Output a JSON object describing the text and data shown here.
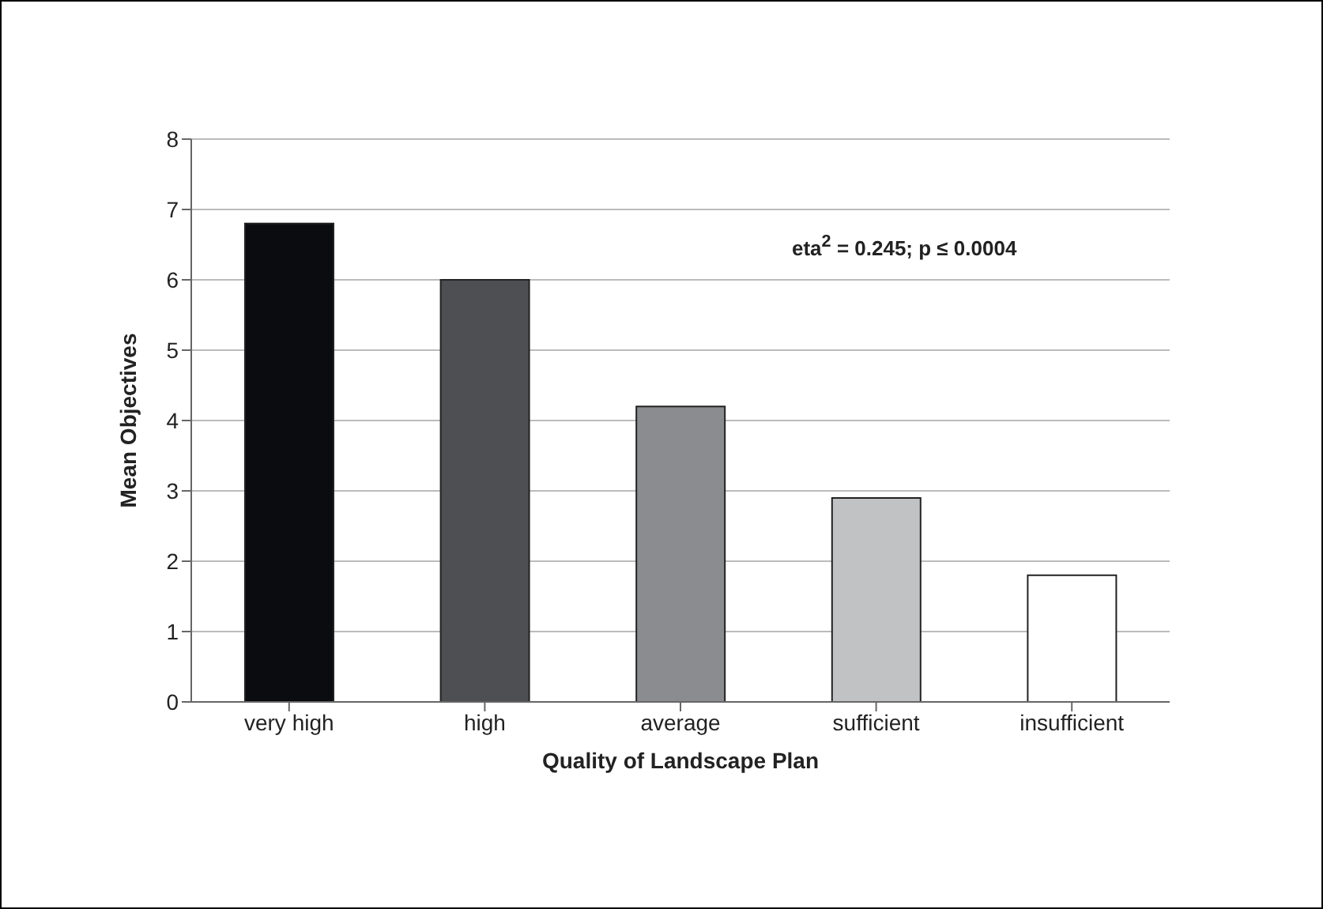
{
  "chart_data": {
    "type": "bar",
    "xlabel": "Quality of Landscape Plan",
    "ylabel": "Mean Objectives",
    "categories": [
      "very high",
      "high",
      "average",
      "sufficient",
      "insufficient"
    ],
    "values": [
      6.8,
      6.0,
      4.2,
      2.9,
      1.8
    ],
    "colors": [
      "#0b0c0f",
      "#4d4f52",
      "#8a8c8f",
      "#c1c2c4",
      "#ffffff"
    ],
    "ylim": [
      0,
      8
    ],
    "yticks": [
      0,
      1,
      2,
      3,
      4,
      5,
      6,
      7,
      8
    ],
    "grid": "y",
    "annotations": [
      "eta$^{2}$ = 0.245; p ≤ 0.0004"
    ]
  }
}
